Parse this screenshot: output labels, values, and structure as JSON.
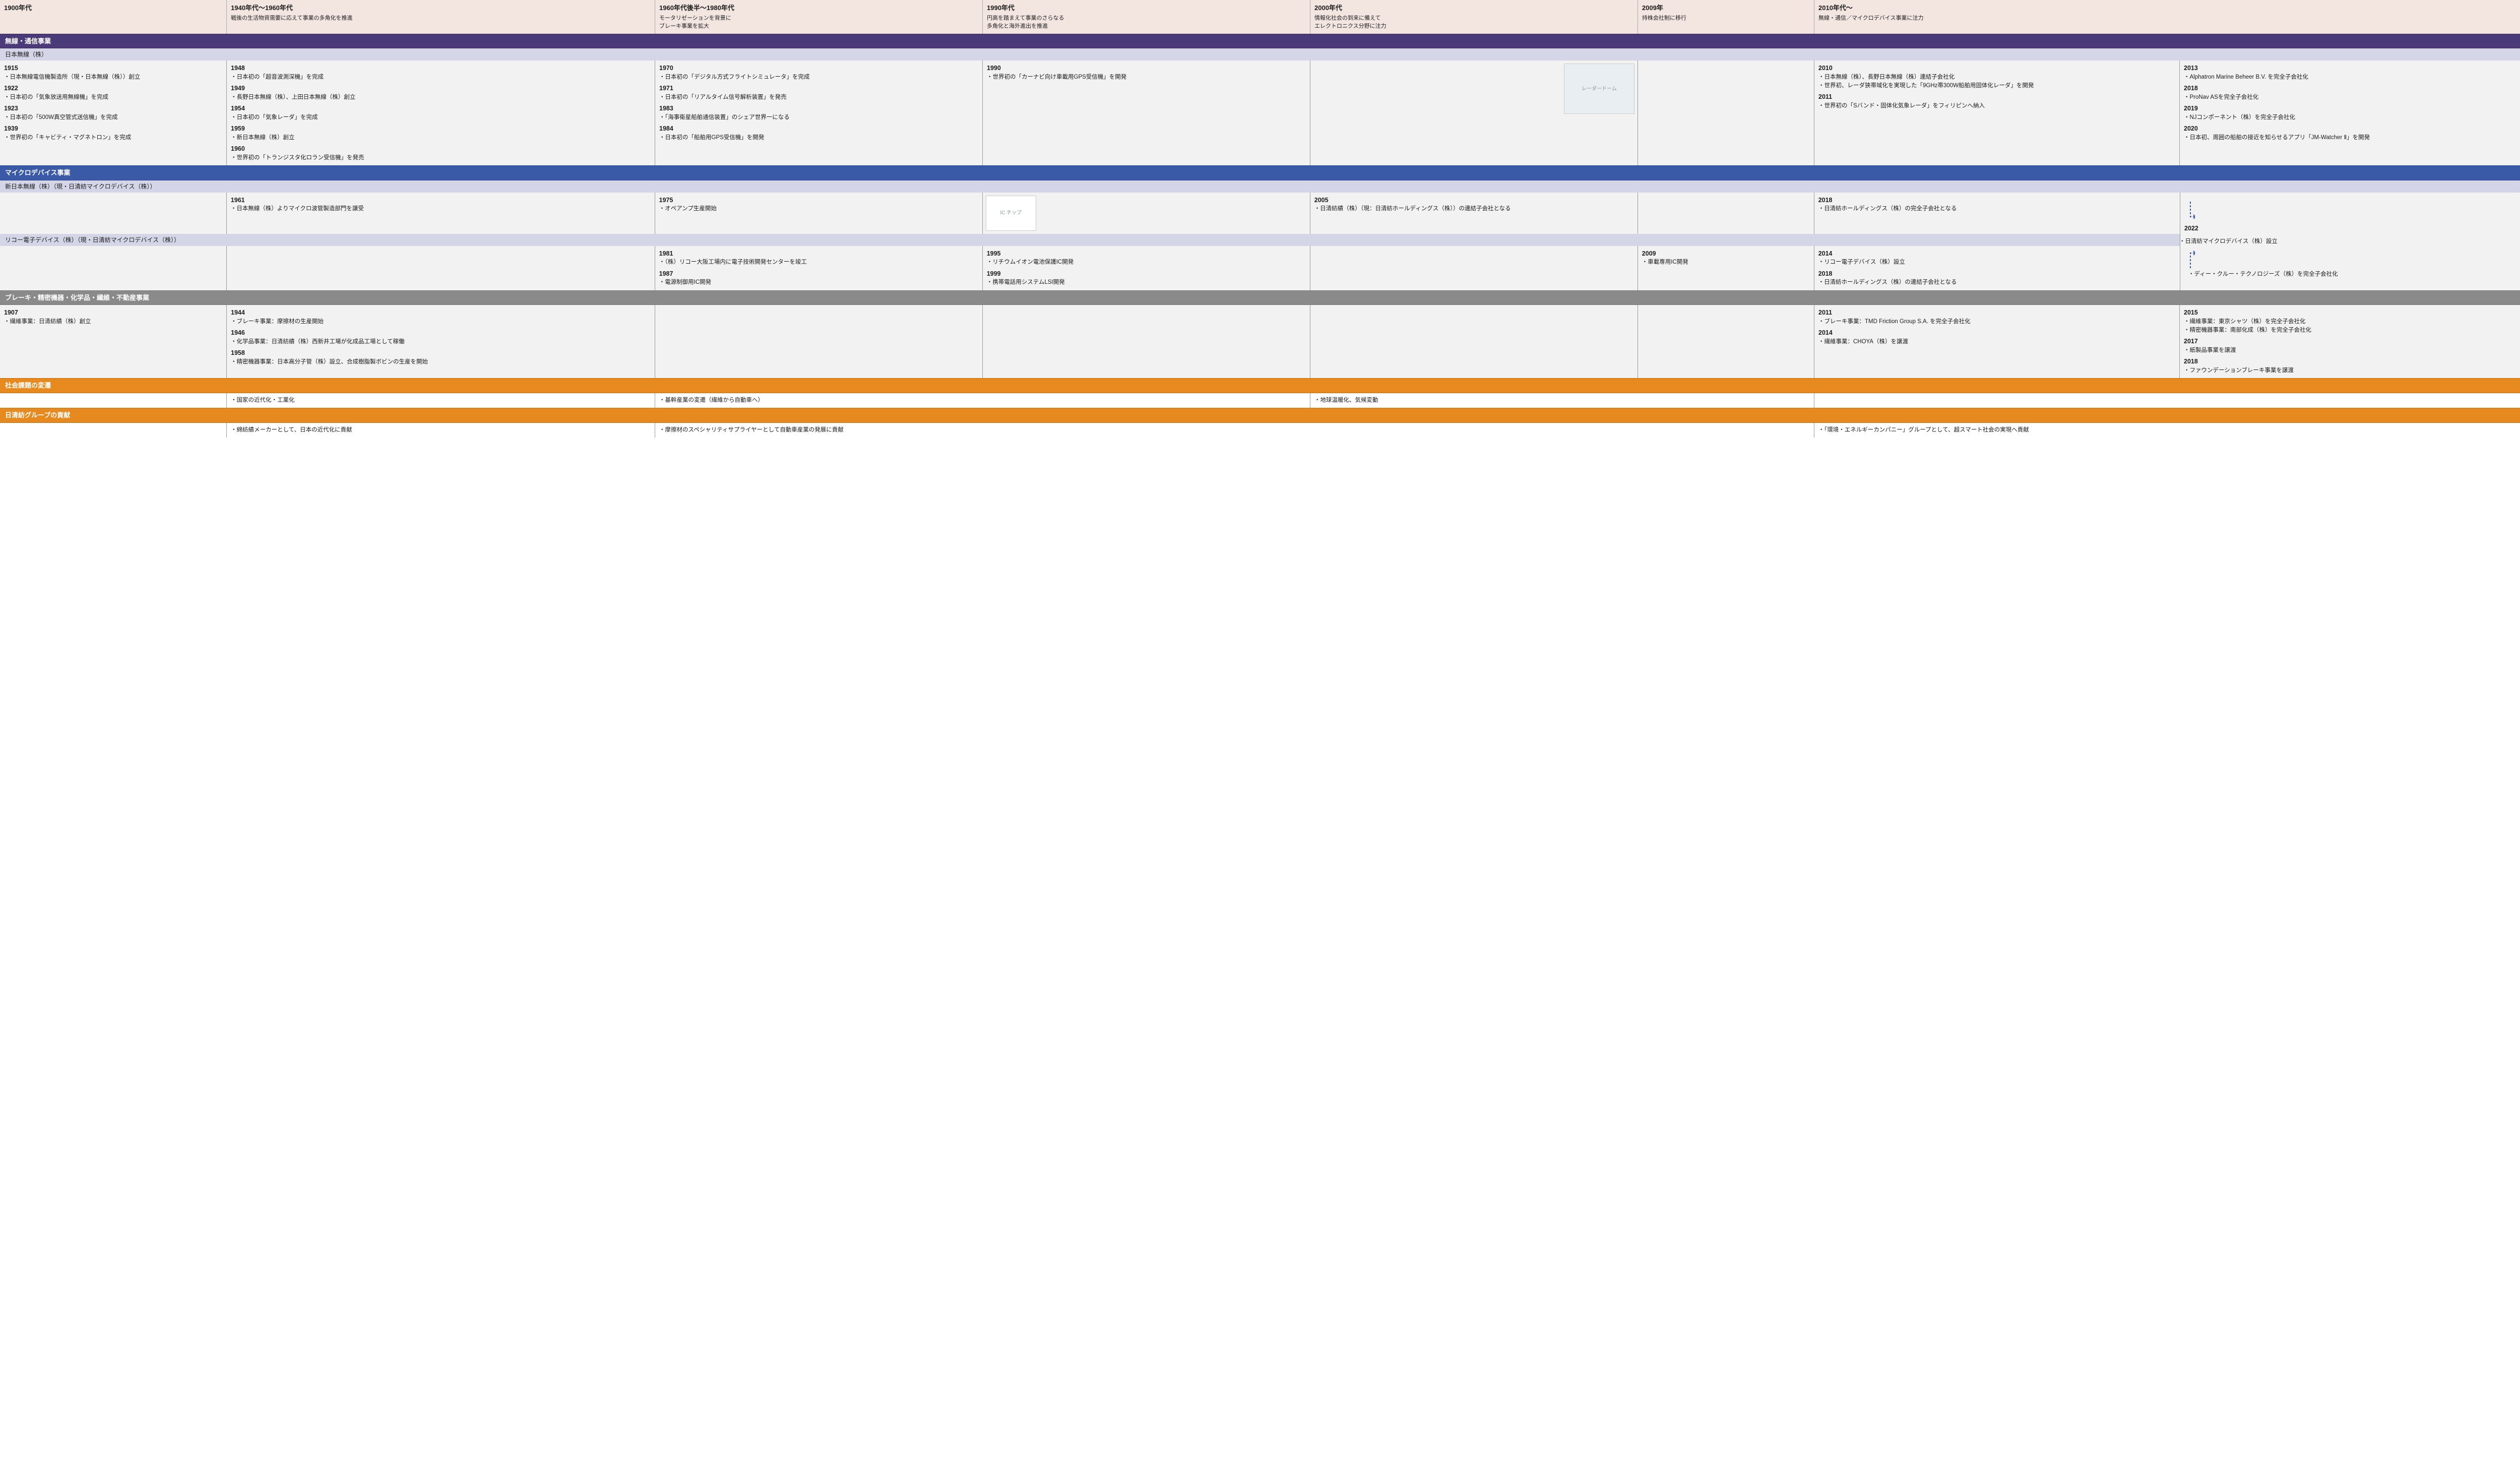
{
  "colors": {
    "wireless": "#4a3a7a",
    "micro": "#3a5aa8",
    "brake": "#8a8a8a",
    "orange": "#e68a1f",
    "header_bg": "#f3e5e0",
    "subhdr_bg": "#d5d5e8",
    "body_bg": "#f2f2f2"
  },
  "eras": [
    {
      "title": "1900年代",
      "sub": ""
    },
    {
      "title": "1940年代～1960年代",
      "sub": "戦後の生活物資需要に応えて事業の多角化を推進"
    },
    {
      "title": "1960年代後半～1980年代",
      "sub": "モータリゼーションを背景に\nブレーキ事業を拡大"
    },
    {
      "title": "1990年代",
      "sub": "円高を踏まえて事業のさらなる\n多角化と海外進出を推進"
    },
    {
      "title": "2000年代",
      "sub": "情報化社会の到来に備えて\nエレクトロニクス分野に注力"
    },
    {
      "title": "2009年",
      "sub": "持株会社制に移行"
    },
    {
      "title": "2010年代～",
      "sub": "無線・通信／マイクロデバイス事業に注力"
    }
  ],
  "wireless": {
    "bar": "無線・通信事業",
    "sub": "日本無線（株）",
    "col0": [
      {
        "y": "1915",
        "t": "日本無線電信機製造所（現・日本無線（株））創立"
      },
      {
        "y": "1922",
        "t": "日本初の「気象放送用無線機」を完成"
      },
      {
        "y": "1923",
        "t": "日本初の「500W真空管式送信機」を完成"
      },
      {
        "y": "1939",
        "t": "世界初の「キャビティ・マグネトロン」を完成"
      }
    ],
    "col1": [
      {
        "y": "1948",
        "t": "日本初の「超音波測深機」を完成"
      },
      {
        "y": "1949",
        "t": "長野日本無線（株）、上田日本無線（株）創立"
      },
      {
        "y": "1954",
        "t": "日本初の「気象レーダ」を完成"
      },
      {
        "y": "1959",
        "t": "新日本無線（株）創立"
      },
      {
        "y": "1960",
        "t": "世界初の「トランジスタ化ロラン受信機」を発売"
      }
    ],
    "col2": [
      {
        "y": "1970",
        "t": "日本初の「デジタル方式フライトシミュレータ」を完成"
      },
      {
        "y": "1971",
        "t": "日本初の「リアルタイム信号解析装置」を発売"
      },
      {
        "y": "1983",
        "t": "「海事衛星船舶通信装置」のシェア世界一になる"
      },
      {
        "y": "1984",
        "t": "日本初の「船舶用GPS受信機」を開発"
      }
    ],
    "col3": [
      {
        "y": "1990",
        "t": "世界初の「カーナビ向け車載用GPS受信機」を開発"
      }
    ],
    "img": "レーダードーム",
    "col6": [
      {
        "y": "2010",
        "t": "日本無線（株）、長野日本無線（株）連結子会社化"
      },
      {
        "y": "",
        "t": "世界初、レーダ狭帯域化を実現した「9GHz帯300W船舶用固体化レーダ」を開発"
      },
      {
        "y": "2011",
        "t": "世界初の「Sバンド・固体化気象レーダ」をフィリピンへ納入"
      }
    ],
    "col7": [
      {
        "y": "2013",
        "t": "Alphatron Marine Beheer B.V. を完全子会社化"
      },
      {
        "y": "2018",
        "t": "ProNav ASを完全子会社化"
      },
      {
        "y": "2019",
        "t": "NJコンポーネント（株）を完全子会社化"
      },
      {
        "y": "2020",
        "t": "日本初、周囲の船舶の接近を知らせるアプリ「JM-Watcher Ⅱ」を開発"
      }
    ]
  },
  "micro": {
    "bar": "マイクロデバイス事業",
    "sub1": "新日本無線（株）（現・日清紡マイクロデバイス（株））",
    "r1_col1": [
      {
        "y": "1961",
        "t": "日本無線（株）よりマイクロ波管製造部門を譲受"
      }
    ],
    "r1_col2": [
      {
        "y": "1975",
        "t": "オペアンプ生産開始"
      }
    ],
    "r1_img": "IC チップ",
    "r1_col4": [
      {
        "y": "2005",
        "t": "日清紡績（株）（現：日清紡ホールディングス（株））の連結子会社となる"
      }
    ],
    "r1_col6": [
      {
        "y": "2018",
        "t": "日清紡ホールディングス（株）の完全子会社となる"
      }
    ],
    "merge": {
      "y": "2022",
      "t1": "日清紡マイクロデバイス（株）設立",
      "t2": "ディー・クルー・テクノロジーズ（株）を完全子会社化"
    },
    "sub2": "リコー電子デバイス（株）（現・日清紡マイクロデバイス（株））",
    "r2_col2": [
      {
        "y": "1981",
        "t": "（株）リコー大阪工場内に電子技術開発センターを竣工"
      },
      {
        "y": "1987",
        "t": "電源制御用IC開発"
      }
    ],
    "r2_col3": [
      {
        "y": "1995",
        "t": "リチウムイオン電池保護IC開発"
      },
      {
        "y": "1999",
        "t": "携帯電話用システムLSI開発"
      }
    ],
    "r2_col5": [
      {
        "y": "2009",
        "t": "車載専用IC開発"
      }
    ],
    "r2_col6": [
      {
        "y": "2014",
        "t": "リコー電子デバイス（株）設立"
      },
      {
        "y": "2018",
        "t": "日清紡ホールディングス（株）の連結子会社となる"
      }
    ]
  },
  "brake": {
    "bar": "ブレーキ・精密機器・化学品・繊維・不動産事業",
    "col0": [
      {
        "y": "1907",
        "t": "繊維事業：日清紡績（株）創立"
      }
    ],
    "col1": [
      {
        "y": "1944",
        "t": "ブレーキ事業：摩擦材の生産開始"
      },
      {
        "y": "1946",
        "t": "化学品事業：日清紡績（株）西新井工場が化成品工場として稼働"
      },
      {
        "y": "1958",
        "t": "精密機器事業：日本高分子管（株）設立、合成樹脂製ボビンの生産を開始"
      }
    ],
    "col6": [
      {
        "y": "2011",
        "t": "ブレーキ事業：TMD Friction Group S.A. を完全子会社化"
      },
      {
        "y": "2014",
        "t": "繊維事業：CHOYA（株）を譲渡"
      }
    ],
    "col7": [
      {
        "y": "2015",
        "t": "繊維事業：東京シャツ（株）を完全子会社化"
      },
      {
        "y": "",
        "t": "精密機器事業：南部化成（株）を完全子会社化"
      },
      {
        "y": "2017",
        "t": "紙製品事業を譲渡"
      },
      {
        "y": "2018",
        "t": "ファウンデーションブレーキ事業を譲渡"
      }
    ]
  },
  "social": {
    "bar": "社会課題の変遷",
    "c1": "国家の近代化・工業化",
    "c2": "基幹産業の変遷（繊維から自動車へ）",
    "c4": "地球温暖化、気候変動"
  },
  "contrib": {
    "bar": "日清紡グループの貢献",
    "c1": "綿紡績メーカーとして、日本の近代化に貢献",
    "c2": "摩擦材のスペシャリティサプライヤーとして自動車産業の発展に貢献",
    "c6": "「環境・エネルギーカンパニー」グループとして、超スマート社会の実現へ貢献"
  }
}
